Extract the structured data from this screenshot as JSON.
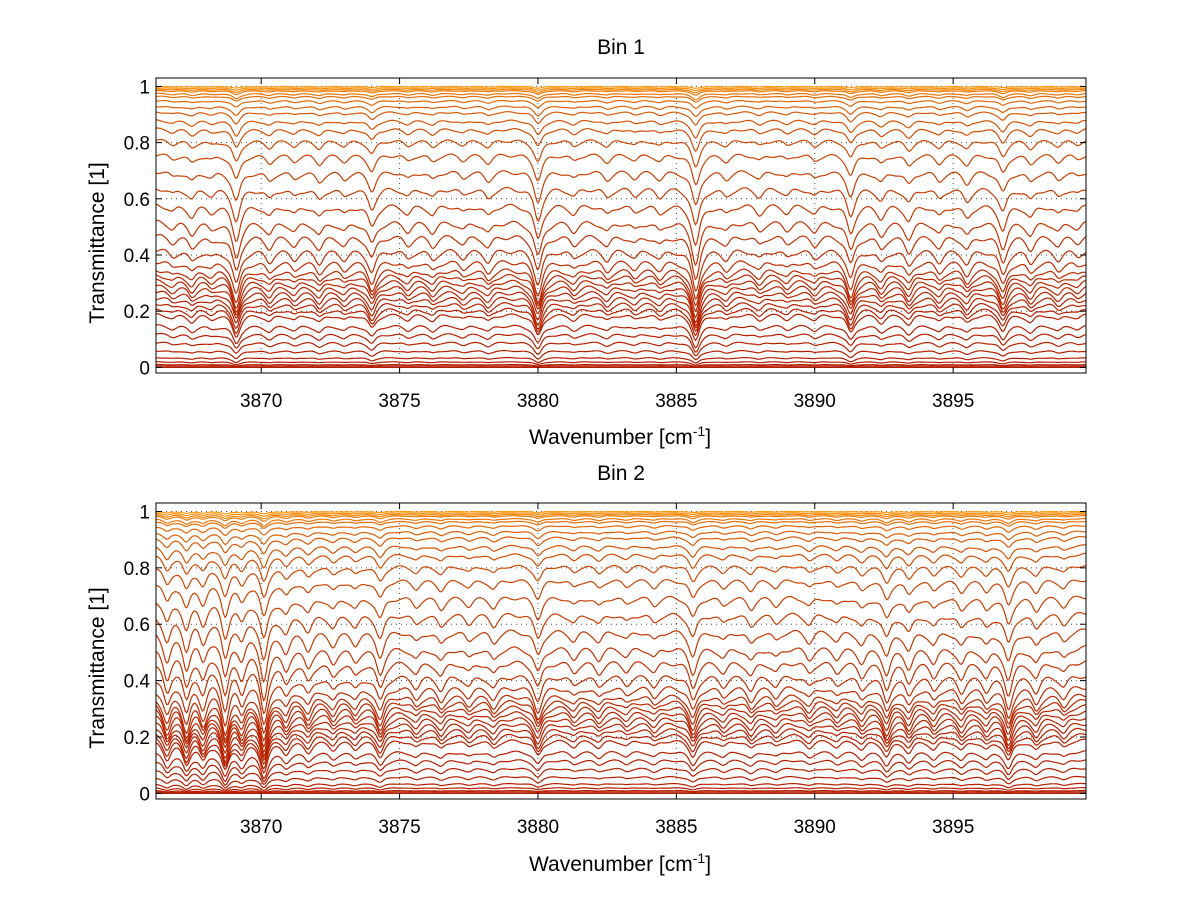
{
  "chart_data": [
    {
      "type": "line",
      "title": "Bin 1",
      "xlabel": "Wavenumber [cm",
      "xlabel_sup": "-1",
      "xlabel_end": "]",
      "ylabel": "Transmittance [1]",
      "xlim": [
        3866.2,
        3899.8
      ],
      "ylim": [
        -0.02,
        1.03
      ],
      "xticks": [
        3870,
        3875,
        3880,
        3885,
        3890,
        3895
      ],
      "yticks": [
        0,
        0.2,
        0.4,
        0.6,
        0.8,
        1
      ],
      "ytick_labels": [
        "0",
        "0.2",
        "0.4",
        "0.6",
        "0.8",
        "1"
      ],
      "grid": true,
      "series_levels": [
        0.0,
        0.005,
        0.01,
        0.02,
        0.035,
        0.06,
        0.09,
        0.12,
        0.15,
        0.19,
        0.21,
        0.23,
        0.25,
        0.27,
        0.29,
        0.31,
        0.33,
        0.35,
        0.38,
        0.42,
        0.47,
        0.52,
        0.58,
        0.64,
        0.7,
        0.76,
        0.81,
        0.85,
        0.88,
        0.91,
        0.93,
        0.95,
        0.965,
        0.975,
        0.985,
        0.99,
        0.995,
        1.0
      ],
      "absorption_lines": [
        {
          "x": 3866.8,
          "depth": 0.1
        },
        {
          "x": 3867.5,
          "depth": 0.18
        },
        {
          "x": 3868.2,
          "depth": 0.1
        },
        {
          "x": 3869.1,
          "depth": 0.55
        },
        {
          "x": 3870.3,
          "depth": 0.18
        },
        {
          "x": 3871.2,
          "depth": 0.14
        },
        {
          "x": 3872.1,
          "depth": 0.2
        },
        {
          "x": 3873.0,
          "depth": 0.14
        },
        {
          "x": 3874.0,
          "depth": 0.35
        },
        {
          "x": 3875.3,
          "depth": 0.14
        },
        {
          "x": 3876.2,
          "depth": 0.16
        },
        {
          "x": 3877.3,
          "depth": 0.12
        },
        {
          "x": 3878.2,
          "depth": 0.18
        },
        {
          "x": 3880.0,
          "depth": 0.55
        },
        {
          "x": 3881.3,
          "depth": 0.14
        },
        {
          "x": 3882.5,
          "depth": 0.16
        },
        {
          "x": 3883.5,
          "depth": 0.12
        },
        {
          "x": 3884.4,
          "depth": 0.14
        },
        {
          "x": 3885.7,
          "depth": 0.65
        },
        {
          "x": 3886.8,
          "depth": 0.14
        },
        {
          "x": 3888.0,
          "depth": 0.14
        },
        {
          "x": 3889.0,
          "depth": 0.12
        },
        {
          "x": 3890.0,
          "depth": 0.14
        },
        {
          "x": 3891.3,
          "depth": 0.45
        },
        {
          "x": 3892.4,
          "depth": 0.2
        },
        {
          "x": 3893.4,
          "depth": 0.25
        },
        {
          "x": 3894.5,
          "depth": 0.18
        },
        {
          "x": 3895.5,
          "depth": 0.22
        },
        {
          "x": 3896.8,
          "depth": 0.4
        },
        {
          "x": 3897.8,
          "depth": 0.2
        },
        {
          "x": 3898.8,
          "depth": 0.15
        },
        {
          "x": 3899.5,
          "depth": 0.1
        }
      ],
      "line_width_cm1": 0.18,
      "colors": {
        "low": "#b41e00",
        "high": "#ff9a10"
      }
    },
    {
      "type": "line",
      "title": "Bin 2",
      "xlabel": "Wavenumber [cm",
      "xlabel_sup": "-1",
      "xlabel_end": "]",
      "ylabel": "Transmittance [1]",
      "xlim": [
        3866.2,
        3899.8
      ],
      "ylim": [
        -0.02,
        1.03
      ],
      "xticks": [
        3870,
        3875,
        3880,
        3885,
        3890,
        3895
      ],
      "yticks": [
        0,
        0.2,
        0.4,
        0.6,
        0.8,
        1
      ],
      "ytick_labels": [
        "0",
        "0.2",
        "0.4",
        "0.6",
        "0.8",
        "1"
      ],
      "grid": true,
      "series_levels": [
        0.0,
        0.005,
        0.01,
        0.02,
        0.035,
        0.06,
        0.09,
        0.12,
        0.15,
        0.19,
        0.21,
        0.23,
        0.25,
        0.27,
        0.29,
        0.31,
        0.33,
        0.35,
        0.38,
        0.42,
        0.47,
        0.52,
        0.58,
        0.64,
        0.7,
        0.76,
        0.81,
        0.85,
        0.88,
        0.91,
        0.93,
        0.95,
        0.965,
        0.975,
        0.985,
        0.99,
        0.995,
        1.0
      ],
      "absorption_lines": [
        {
          "x": 3866.6,
          "depth": 0.45
        },
        {
          "x": 3867.3,
          "depth": 0.55
        },
        {
          "x": 3867.9,
          "depth": 0.45
        },
        {
          "x": 3868.7,
          "depth": 0.7
        },
        {
          "x": 3869.3,
          "depth": 0.4
        },
        {
          "x": 3870.1,
          "depth": 0.75
        },
        {
          "x": 3870.9,
          "depth": 0.3
        },
        {
          "x": 3871.7,
          "depth": 0.28
        },
        {
          "x": 3872.6,
          "depth": 0.22
        },
        {
          "x": 3873.4,
          "depth": 0.2
        },
        {
          "x": 3874.3,
          "depth": 0.4
        },
        {
          "x": 3875.6,
          "depth": 0.18
        },
        {
          "x": 3876.5,
          "depth": 0.22
        },
        {
          "x": 3877.5,
          "depth": 0.16
        },
        {
          "x": 3878.4,
          "depth": 0.2
        },
        {
          "x": 3880.0,
          "depth": 0.4
        },
        {
          "x": 3881.3,
          "depth": 0.16
        },
        {
          "x": 3882.2,
          "depth": 0.18
        },
        {
          "x": 3883.2,
          "depth": 0.14
        },
        {
          "x": 3884.2,
          "depth": 0.16
        },
        {
          "x": 3885.6,
          "depth": 0.4
        },
        {
          "x": 3886.7,
          "depth": 0.16
        },
        {
          "x": 3887.7,
          "depth": 0.22
        },
        {
          "x": 3888.6,
          "depth": 0.16
        },
        {
          "x": 3889.8,
          "depth": 0.18
        },
        {
          "x": 3890.8,
          "depth": 0.16
        },
        {
          "x": 3891.7,
          "depth": 0.22
        },
        {
          "x": 3892.6,
          "depth": 0.4
        },
        {
          "x": 3893.4,
          "depth": 0.3
        },
        {
          "x": 3894.3,
          "depth": 0.22
        },
        {
          "x": 3895.3,
          "depth": 0.25
        },
        {
          "x": 3896.2,
          "depth": 0.22
        },
        {
          "x": 3897.0,
          "depth": 0.5
        },
        {
          "x": 3898.0,
          "depth": 0.25
        },
        {
          "x": 3899.0,
          "depth": 0.18
        }
      ],
      "line_width_cm1": 0.18,
      "colors": {
        "low": "#b41e00",
        "high": "#ff9a10"
      }
    }
  ]
}
